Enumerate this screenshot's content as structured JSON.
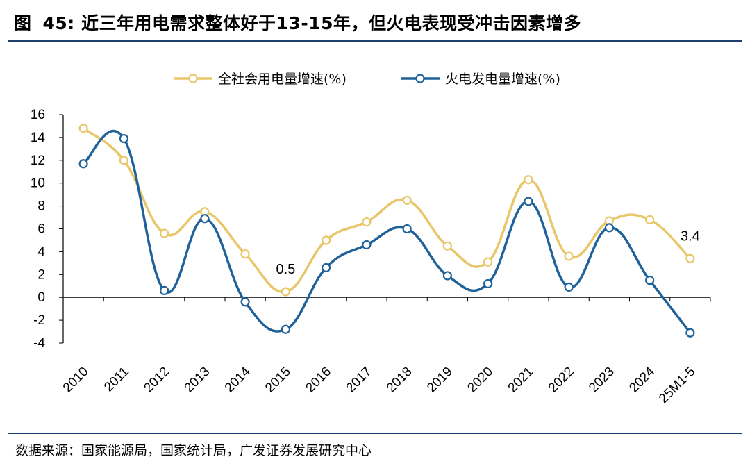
{
  "figure": {
    "label": "图",
    "number": "45:",
    "title": "近三年用电需求整体好于13-15年，但火电表现受冲击因素增多"
  },
  "source": "数据来源：国家能源局，国家统计局，广发证券发展研究中心",
  "colors": {
    "series1": "#E8C66A",
    "series2": "#1F6199",
    "axis": "#000000"
  },
  "chart_data": {
    "type": "line",
    "title": "",
    "xlabel": "",
    "ylabel": "",
    "ylim": [
      -4,
      16
    ],
    "yticks": [
      -4,
      -2,
      0,
      2,
      4,
      6,
      8,
      10,
      12,
      14,
      16
    ],
    "categories": [
      "2010",
      "2011",
      "2012",
      "2013",
      "2014",
      "2015",
      "2016",
      "2017",
      "2018",
      "2019",
      "2020",
      "2021",
      "2022",
      "2023",
      "2024",
      "25M1-5"
    ],
    "legend_position": "top-center",
    "grid": false,
    "series": [
      {
        "name": "全社会用电量增速(%)",
        "color": "#E8C66A",
        "values": [
          14.8,
          12.0,
          5.6,
          7.5,
          3.8,
          0.5,
          5.0,
          6.6,
          8.5,
          4.5,
          3.1,
          10.3,
          3.6,
          6.7,
          6.8,
          3.4
        ]
      },
      {
        "name": "火电发电量增速(%)",
        "color": "#1F6199",
        "values": [
          11.7,
          13.9,
          0.6,
          6.9,
          -0.4,
          -2.8,
          2.6,
          4.6,
          6.0,
          1.9,
          1.2,
          8.4,
          0.9,
          6.1,
          1.5,
          -3.1
        ]
      }
    ],
    "annotations": [
      {
        "text": "0.5",
        "category": "2015",
        "value": 0.5
      },
      {
        "text": "3.4",
        "category": "25M1-5",
        "value": 3.4
      }
    ]
  }
}
